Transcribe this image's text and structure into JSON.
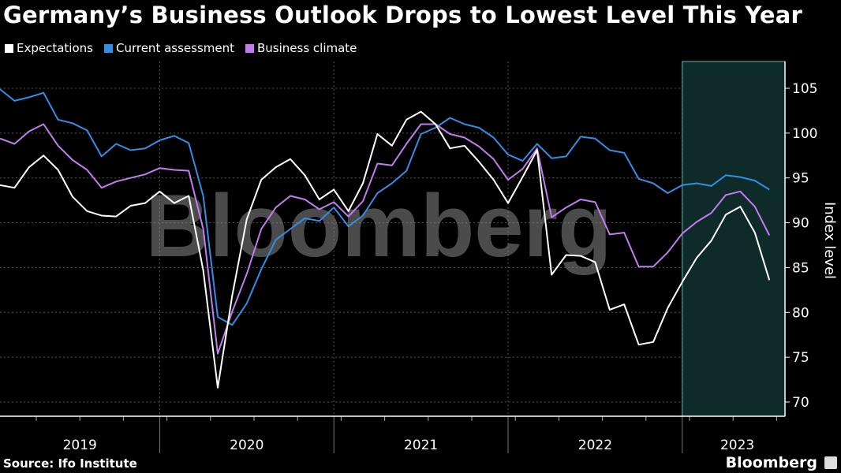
{
  "chart_data": {
    "type": "line",
    "title": "Germany’s Business Outlook Drops to Lowest Level This Year",
    "ylabel": "Index level",
    "xlabel": "",
    "ylim": [
      68.5,
      108
    ],
    "yticks": [
      70,
      75,
      80,
      85,
      90,
      95,
      100,
      105
    ],
    "x_start": "2019-01",
    "x_end": "2023-06",
    "x_frequency": "monthly",
    "year_labels": [
      "2019",
      "2020",
      "2021",
      "2022",
      "2023"
    ],
    "highlight": {
      "from": "2023-01",
      "to": "2023-06",
      "color": "#0e2b29"
    },
    "grid": true,
    "legend_position": "top-left",
    "series": [
      {
        "name": "Expectations",
        "color": "#ffffff",
        "values": [
          94.2,
          93.9,
          96.2,
          97.5,
          95.9,
          92.9,
          91.3,
          90.8,
          90.7,
          91.9,
          92.2,
          93.5,
          92.2,
          93.0,
          84.7,
          71.6,
          81.9,
          90.4,
          94.8,
          96.2,
          97.1,
          95.3,
          92.6,
          93.7,
          91.3,
          94.4,
          99.9,
          98.6,
          101.5,
          102.4,
          101.0,
          98.3,
          98.6,
          96.8,
          94.8,
          92.2,
          95.1,
          98.1,
          84.2,
          86.4,
          86.3,
          85.6,
          80.3,
          80.9,
          76.4,
          76.7,
          80.5,
          83.4,
          86.1,
          88.0,
          90.9,
          91.8,
          88.9,
          83.6
        ]
      },
      {
        "name": "Current assessment",
        "color": "#2f8fe8",
        "values": [
          104.9,
          103.6,
          104.0,
          104.5,
          101.5,
          101.1,
          100.3,
          97.4,
          98.8,
          98.1,
          98.3,
          99.2,
          99.7,
          98.9,
          93.0,
          79.5,
          78.6,
          81.0,
          84.8,
          88.1,
          89.3,
          90.5,
          90.2,
          91.7,
          89.6,
          90.8,
          93.3,
          94.4,
          95.8,
          99.9,
          100.6,
          101.7,
          101.0,
          100.6,
          99.5,
          97.6,
          96.9,
          98.8,
          97.2,
          97.4,
          99.6,
          99.4,
          98.1,
          97.8,
          94.9,
          94.4,
          93.3,
          94.2,
          94.4,
          94.1,
          95.3,
          95.1,
          94.7,
          93.7
        ]
      },
      {
        "name": "Business climate",
        "color": "#c27cf0",
        "values": [
          99.4,
          98.8,
          100.2,
          101.0,
          98.6,
          97.0,
          95.9,
          93.9,
          94.6,
          95.0,
          95.4,
          96.1,
          95.9,
          95.8,
          89.3,
          75.4,
          80.1,
          84.3,
          89.3,
          91.7,
          93.0,
          92.6,
          91.5,
          92.3,
          90.7,
          92.4,
          96.6,
          96.4,
          98.8,
          101.0,
          101.0,
          99.9,
          99.5,
          98.5,
          97.1,
          94.8,
          96.0,
          98.3,
          90.6,
          91.7,
          92.6,
          92.3,
          88.7,
          88.9,
          85.1,
          85.1,
          86.7,
          88.8,
          90.1,
          91.1,
          93.1,
          93.5,
          91.8,
          88.6
        ]
      }
    ]
  },
  "source": "Source: Ifo Institute",
  "watermark": "Bloomberg",
  "brand": "Bloomberg"
}
